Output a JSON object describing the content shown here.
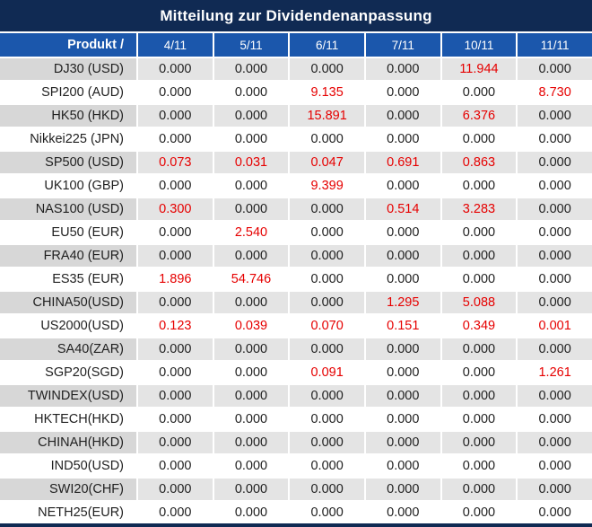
{
  "title": "Mitteilung zur Dividendenanpassung",
  "colors": {
    "title_navy": "#102a53",
    "header_blue": "#1b57ac",
    "value_highlight_red": "#e60000",
    "stripe_row_gray": "#e4e4e4",
    "stripe_product_gray": "#d7d7d7",
    "text_dark": "#1f1f1f"
  },
  "table": {
    "product_header": "Produkt /",
    "zero_value": "0.000",
    "date_headers": [
      "4/11",
      "5/11",
      "6/11",
      "7/11",
      "10/11",
      "11/11"
    ],
    "rows": [
      {
        "product": "DJ30 (USD)",
        "values": [
          "0.000",
          "0.000",
          "0.000",
          "0.000",
          "11.944",
          "0.000"
        ]
      },
      {
        "product": "SPI200 (AUD)",
        "values": [
          "0.000",
          "0.000",
          "9.135",
          "0.000",
          "0.000",
          "8.730"
        ]
      },
      {
        "product": "HK50 (HKD)",
        "values": [
          "0.000",
          "0.000",
          "15.891",
          "0.000",
          "6.376",
          "0.000"
        ]
      },
      {
        "product": "Nikkei225 (JPN)",
        "values": [
          "0.000",
          "0.000",
          "0.000",
          "0.000",
          "0.000",
          "0.000"
        ]
      },
      {
        "product": "SP500 (USD)",
        "values": [
          "0.073",
          "0.031",
          "0.047",
          "0.691",
          "0.863",
          "0.000"
        ]
      },
      {
        "product": "UK100 (GBP)",
        "values": [
          "0.000",
          "0.000",
          "9.399",
          "0.000",
          "0.000",
          "0.000"
        ]
      },
      {
        "product": "NAS100 (USD)",
        "values": [
          "0.300",
          "0.000",
          "0.000",
          "0.514",
          "3.283",
          "0.000"
        ]
      },
      {
        "product": "EU50 (EUR)",
        "values": [
          "0.000",
          "2.540",
          "0.000",
          "0.000",
          "0.000",
          "0.000"
        ]
      },
      {
        "product": "FRA40 (EUR)",
        "values": [
          "0.000",
          "0.000",
          "0.000",
          "0.000",
          "0.000",
          "0.000"
        ]
      },
      {
        "product": "ES35 (EUR)",
        "values": [
          "1.896",
          "54.746",
          "0.000",
          "0.000",
          "0.000",
          "0.000"
        ]
      },
      {
        "product": "CHINA50(USD)",
        "values": [
          "0.000",
          "0.000",
          "0.000",
          "1.295",
          "5.088",
          "0.000"
        ]
      },
      {
        "product": "US2000(USD)",
        "values": [
          "0.123",
          "0.039",
          "0.070",
          "0.151",
          "0.349",
          "0.001"
        ]
      },
      {
        "product": "SA40(ZAR)",
        "values": [
          "0.000",
          "0.000",
          "0.000",
          "0.000",
          "0.000",
          "0.000"
        ]
      },
      {
        "product": "SGP20(SGD)",
        "values": [
          "0.000",
          "0.000",
          "0.091",
          "0.000",
          "0.000",
          "1.261"
        ]
      },
      {
        "product": "TWINDEX(USD)",
        "values": [
          "0.000",
          "0.000",
          "0.000",
          "0.000",
          "0.000",
          "0.000"
        ]
      },
      {
        "product": "HKTECH(HKD)",
        "values": [
          "0.000",
          "0.000",
          "0.000",
          "0.000",
          "0.000",
          "0.000"
        ]
      },
      {
        "product": "CHINAH(HKD)",
        "values": [
          "0.000",
          "0.000",
          "0.000",
          "0.000",
          "0.000",
          "0.000"
        ]
      },
      {
        "product": "IND50(USD)",
        "values": [
          "0.000",
          "0.000",
          "0.000",
          "0.000",
          "0.000",
          "0.000"
        ]
      },
      {
        "product": "SWI20(CHF)",
        "values": [
          "0.000",
          "0.000",
          "0.000",
          "0.000",
          "0.000",
          "0.000"
        ]
      },
      {
        "product": "NETH25(EUR)",
        "values": [
          "0.000",
          "0.000",
          "0.000",
          "0.000",
          "0.000",
          "0.000"
        ]
      }
    ]
  }
}
